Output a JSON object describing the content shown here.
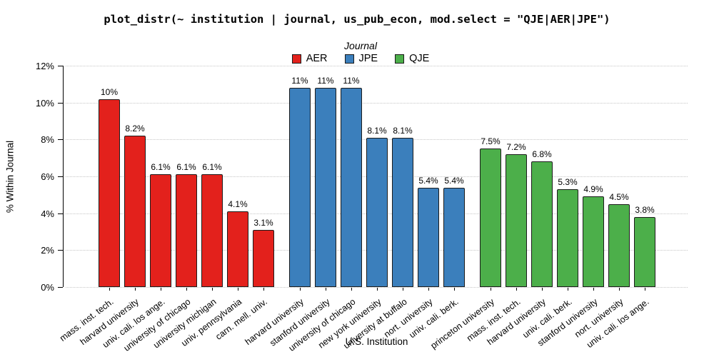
{
  "chart_data": {
    "type": "bar",
    "title": "plot_distr(~ institution | journal, us_pub_econ, mod.select = \"QJE|AER|JPE\")",
    "xlabel": "U.S. Institution",
    "ylabel": "% Within Journal",
    "legend": {
      "title": "Journal",
      "position": "top-center"
    },
    "grid": "horizontal-dotted",
    "ylim": [
      0,
      12
    ],
    "yticks": [
      "0%",
      "2%",
      "4%",
      "6%",
      "8%",
      "10%",
      "12%"
    ],
    "ytick_values": [
      0,
      2,
      4,
      6,
      8,
      10,
      12
    ],
    "series": [
      {
        "name": "AER",
        "color": "#e3211c",
        "categories": [
          "mass. inst. tech.",
          "harvard university",
          "univ. cali. los ange.",
          "university of chicago",
          "university michigan",
          "univ. pennsylvania",
          "carn. mell. univ."
        ],
        "values": [
          10.2,
          8.2,
          6.1,
          6.1,
          6.1,
          4.1,
          3.1
        ],
        "labels": [
          "10%",
          "8.2%",
          "6.1%",
          "6.1%",
          "6.1%",
          "4.1%",
          "3.1%"
        ]
      },
      {
        "name": "JPE",
        "color": "#3b7fbc",
        "categories": [
          "harvard university",
          "stanford university",
          "university of chicago",
          "new york university",
          "university at buffalo",
          "nort. university",
          "univ. cali. berk."
        ],
        "values": [
          10.8,
          10.8,
          10.8,
          8.1,
          8.1,
          5.4,
          5.4
        ],
        "labels": [
          "11%",
          "11%",
          "11%",
          "8.1%",
          "8.1%",
          "5.4%",
          "5.4%"
        ]
      },
      {
        "name": "QJE",
        "color": "#4caf4a",
        "categories": [
          "princeton university",
          "mass. inst. tech.",
          "harvard university",
          "univ. cali. berk.",
          "stanford university",
          "nort. university",
          "univ. cali. los ange."
        ],
        "values": [
          7.5,
          7.2,
          6.8,
          5.3,
          4.9,
          4.5,
          3.8
        ],
        "labels": [
          "7.5%",
          "7.2%",
          "6.8%",
          "5.3%",
          "4.9%",
          "4.5%",
          "3.8%"
        ]
      }
    ]
  }
}
